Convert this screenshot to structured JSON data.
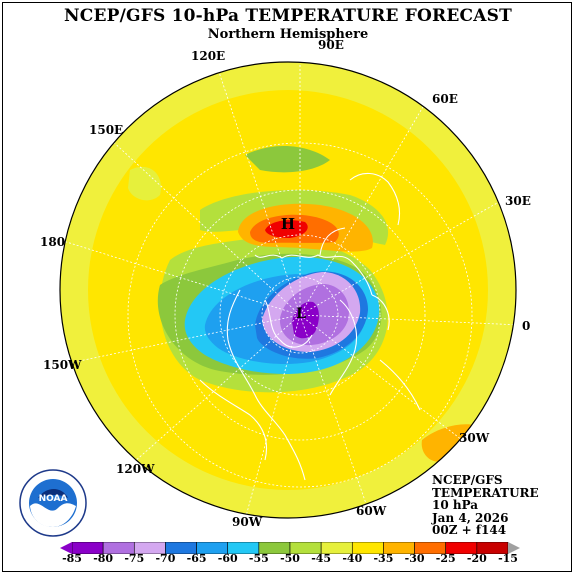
{
  "title": "NCEP/GFS 10-hPa TEMPERATURE FORECAST",
  "subtitle": "Northern Hemisphere",
  "longitude_labels": [
    {
      "id": "90e",
      "text": "90E"
    },
    {
      "id": "60e",
      "text": "60E"
    },
    {
      "id": "30e",
      "text": "30E"
    },
    {
      "id": "0",
      "text": "0"
    },
    {
      "id": "30w",
      "text": "30W"
    },
    {
      "id": "60w",
      "text": "60W"
    },
    {
      "id": "90w",
      "text": "90W"
    },
    {
      "id": "120w",
      "text": "120W"
    },
    {
      "id": "150w",
      "text": "150W"
    },
    {
      "id": "180",
      "text": "180"
    },
    {
      "id": "150e",
      "text": "150E"
    },
    {
      "id": "120e",
      "text": "120E"
    }
  ],
  "markers": {
    "high": "H",
    "low": "L"
  },
  "info_box": {
    "line1": "NCEP/GFS",
    "line2": "TEMPERATURE",
    "line3": "10 hPa",
    "line4": "Jan 4, 2026",
    "line5": "00Z + f144"
  },
  "logo": {
    "name": "NOAA",
    "ring_text": "NATIONAL OCEANIC AND ATMOSPHERIC ADMINISTRATION · U.S. DEPARTMENT OF COMMERCE"
  },
  "colorbar": {
    "ticks": [
      "-85",
      "-80",
      "-75",
      "-70",
      "-65",
      "-60",
      "-55",
      "-50",
      "-45",
      "-40",
      "-35",
      "-30",
      "-25",
      "-20",
      "-15"
    ],
    "colors": [
      "#8a00c8",
      "#b070e0",
      "#d4a8f0",
      "#1e78e0",
      "#1ea0f0",
      "#23c8f5",
      "#8cc83c",
      "#b4e03c",
      "#e6f03c",
      "#ffe600",
      "#ffb400",
      "#ff6e00",
      "#f00000",
      "#c80000"
    ]
  }
}
